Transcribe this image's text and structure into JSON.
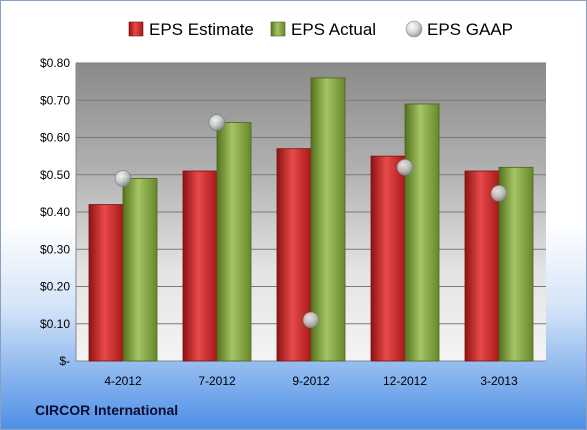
{
  "chart_data": {
    "type": "bar",
    "categories": [
      "4-2012",
      "7-2012",
      "9-2012",
      "12-2012",
      "3-2013"
    ],
    "series": [
      {
        "name": "EPS Estimate",
        "kind": "bar",
        "color": "#d42a2a",
        "values": [
          0.42,
          0.51,
          0.57,
          0.55,
          0.51
        ]
      },
      {
        "name": "EPS Actual",
        "kind": "bar",
        "color": "#7ea23f",
        "values": [
          0.49,
          0.64,
          0.76,
          0.69,
          0.52
        ]
      },
      {
        "name": "EPS GAAP",
        "kind": "marker",
        "color": "#c8ccd2",
        "values": [
          0.49,
          0.64,
          0.11,
          0.52,
          0.45
        ]
      }
    ],
    "ylim": [
      0,
      0.8
    ],
    "yticks": [
      0,
      0.1,
      0.2,
      0.3,
      0.4,
      0.5,
      0.6,
      0.7,
      0.8
    ],
    "ytick_labels": [
      "$-",
      "$0.10",
      "$0.20",
      "$0.30",
      "$0.40",
      "$0.50",
      "$0.60",
      "$0.70",
      "$0.80"
    ],
    "grid": true,
    "legend_position": "top"
  },
  "footer": {
    "company": "CIRCOR International"
  }
}
